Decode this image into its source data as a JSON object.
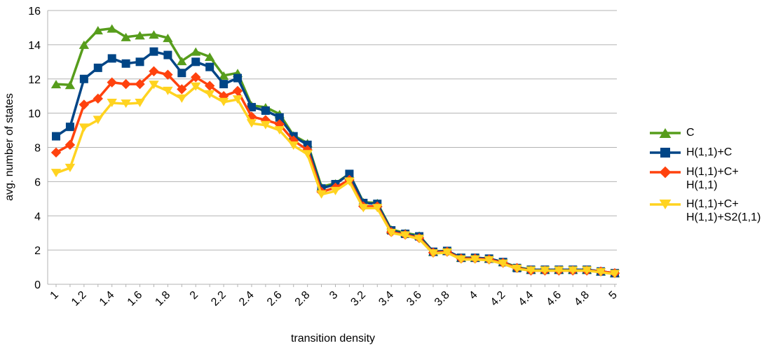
{
  "chart_data": {
    "type": "line",
    "x_label": "transition density",
    "y_label": "avg. number of states",
    "categories": [
      "1",
      null,
      "1.2",
      null,
      "1.4",
      null,
      "1.6",
      null,
      "1.8",
      null,
      "2",
      null,
      "2.2",
      null,
      "2.4",
      null,
      "2.6",
      null,
      "2.8",
      null,
      "3",
      null,
      "3.2",
      null,
      "3.4",
      null,
      "3.6",
      null,
      "3.8",
      null,
      "4",
      null,
      "4.2",
      null,
      "4.4",
      null,
      "4.6",
      null,
      "4.8",
      null,
      "5"
    ],
    "ylim": [
      0,
      16
    ],
    "yticks": [
      0,
      2,
      4,
      6,
      8,
      10,
      12,
      14,
      16
    ],
    "grid": true,
    "legend": "right",
    "series": [
      {
        "name": "C",
        "color": "#579d1c",
        "marker": "triangle-up",
        "values": [
          11.7,
          11.65,
          14.0,
          14.85,
          14.95,
          14.45,
          14.55,
          14.6,
          14.4,
          13.05,
          13.6,
          13.3,
          12.2,
          12.35,
          10.45,
          10.35,
          9.95,
          8.7,
          8.25,
          5.7,
          5.9,
          6.45,
          4.8,
          4.75,
          3.2,
          3.0,
          2.85,
          1.9,
          1.95,
          1.55,
          1.55,
          1.5,
          1.3,
          1.0,
          0.85,
          0.85,
          0.85,
          0.85,
          0.85,
          0.75,
          0.65
        ]
      },
      {
        "name": "H(1,1)+C",
        "color": "#004586",
        "marker": "square",
        "values": [
          8.65,
          9.2,
          12.0,
          12.65,
          13.2,
          12.9,
          13.0,
          13.6,
          13.4,
          12.35,
          13.0,
          12.7,
          11.7,
          12.05,
          10.35,
          10.15,
          9.75,
          8.65,
          8.15,
          5.6,
          5.85,
          6.45,
          4.75,
          4.7,
          3.15,
          2.95,
          2.8,
          1.9,
          1.95,
          1.55,
          1.55,
          1.5,
          1.3,
          0.95,
          0.85,
          0.85,
          0.85,
          0.85,
          0.85,
          0.75,
          0.65
        ]
      },
      {
        "name": "H(1,1)+C+\nH(1,1)",
        "color": "#ff420e",
        "marker": "diamond",
        "values": [
          7.7,
          8.15,
          10.5,
          10.85,
          11.8,
          11.7,
          11.7,
          12.45,
          12.25,
          11.4,
          12.1,
          11.6,
          11.0,
          11.3,
          9.8,
          9.6,
          9.35,
          8.4,
          7.85,
          5.4,
          5.65,
          6.1,
          4.55,
          4.55,
          3.05,
          2.9,
          2.7,
          1.85,
          1.9,
          1.5,
          1.5,
          1.45,
          1.25,
          0.95,
          0.8,
          0.8,
          0.8,
          0.8,
          0.8,
          0.75,
          0.65
        ]
      },
      {
        "name": "H(1,1)+C+\nH(1,1)+S2(1,1)",
        "color": "#ffd320",
        "marker": "triangle-down",
        "values": [
          6.5,
          6.8,
          9.15,
          9.6,
          10.6,
          10.55,
          10.6,
          11.65,
          11.3,
          10.85,
          11.55,
          11.1,
          10.65,
          10.8,
          9.4,
          9.3,
          9.0,
          8.1,
          7.6,
          5.25,
          5.45,
          6.0,
          4.45,
          4.45,
          3.0,
          2.85,
          2.65,
          1.8,
          1.85,
          1.45,
          1.45,
          1.4,
          1.2,
          0.9,
          0.8,
          0.8,
          0.8,
          0.8,
          0.8,
          0.7,
          0.6
        ]
      }
    ]
  }
}
